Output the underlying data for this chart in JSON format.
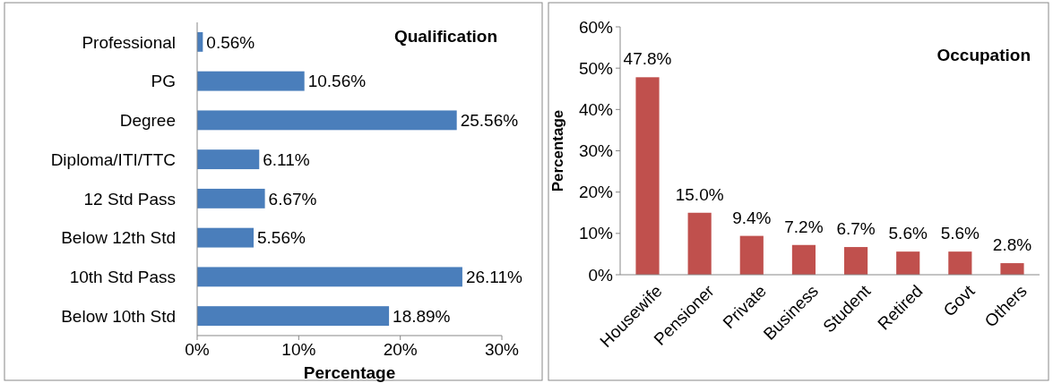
{
  "chart_data": [
    {
      "type": "bar",
      "orientation": "horizontal",
      "title": "Qualification",
      "xlabel": "Percentage",
      "categories": [
        "Professional",
        "PG",
        "Degree",
        "Diploma/ITI/TTC",
        "12 Std Pass",
        "Below 12th Std",
        "10th Std Pass",
        "Below 10th Std"
      ],
      "values": [
        0.56,
        10.56,
        25.56,
        6.11,
        6.67,
        5.56,
        26.11,
        18.89
      ],
      "value_labels": [
        "0.56%",
        "10.56%",
        "25.56%",
        "6.11%",
        "6.67%",
        "5.56%",
        "26.11%",
        "18.89%"
      ],
      "color": "#4a7ebb",
      "xlim": [
        0,
        30
      ],
      "xticks": [
        {
          "value": 0,
          "label": "0%"
        },
        {
          "value": 10,
          "label": "10%"
        },
        {
          "value": 20,
          "label": "20%"
        },
        {
          "value": 30,
          "label": "30%"
        }
      ],
      "grid": false
    },
    {
      "type": "bar",
      "title": "Occupation",
      "ylabel": "Percentage",
      "categories": [
        "Housewife",
        "Pensioner",
        "Private",
        "Business",
        "Student",
        "Retired",
        "Govt",
        "Others"
      ],
      "values": [
        47.8,
        15.0,
        9.4,
        7.2,
        6.7,
        5.6,
        5.6,
        2.8
      ],
      "value_labels": [
        "47.8%",
        "15.0%",
        "9.4%",
        "7.2%",
        "6.7%",
        "5.6%",
        "5.6%",
        "2.8%"
      ],
      "color": "#c0504d",
      "ylim": [
        0,
        60
      ],
      "yticks": [
        {
          "value": 0,
          "label": "0%"
        },
        {
          "value": 10,
          "label": "10%"
        },
        {
          "value": 20,
          "label": "20%"
        },
        {
          "value": 30,
          "label": "30%"
        },
        {
          "value": 40,
          "label": "40%"
        },
        {
          "value": 50,
          "label": "50%"
        },
        {
          "value": 60,
          "label": "60%"
        }
      ],
      "grid": false
    }
  ]
}
